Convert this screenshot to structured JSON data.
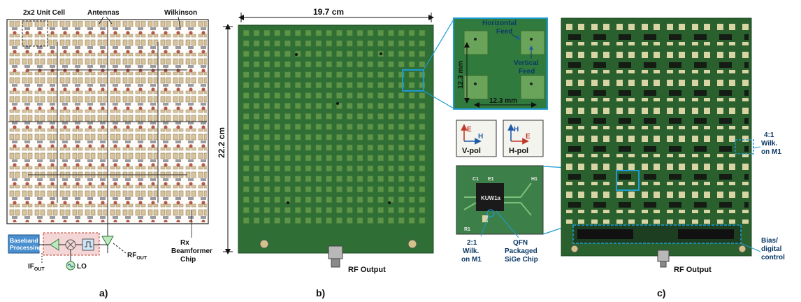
{
  "panel_a": {
    "label_unit_cell": "2x2 Unit Cell",
    "label_antennas": "Antennas",
    "label_wilkinson": "Wilkinson",
    "label_rf_out_main": "RF",
    "label_rf_out_sub": "OUT",
    "label_rx_chip": "Rx\nBeamformer\nChip",
    "label_baseband": "Baseband\nProcessing",
    "label_if_out_main": "IF",
    "label_if_out_sub": "OUT",
    "label_lo": "LO",
    "caption": "a)"
  },
  "panel_b": {
    "width_dim": "19.7 cm",
    "height_dim": "22.2 cm",
    "rf_output": "RF Output",
    "caption": "b)",
    "zoom": {
      "horizontal_feed": "Horizontal\nFeed",
      "vertical_feed": "Vertical\nFeed",
      "dim_vertical": "12.3 mm",
      "dim_horizontal": "12.3 mm"
    },
    "vpol": {
      "e": "E",
      "h": "H",
      "label": "V-pol"
    },
    "hpol": {
      "e": "E",
      "h": "H",
      "label": "H-pol"
    },
    "chip_zoom": {
      "chip_marking": "KUW1a",
      "c1": "C1",
      "e1": "E1",
      "h1": "H1",
      "r1": "R1"
    },
    "label_wilk_21": "2:1\nWilk.\non M1",
    "label_qfn": "QFN\nPackaged\nSiGe Chip"
  },
  "panel_c": {
    "label_wilk_41": "4:1\nWilk.\non M1",
    "label_bias": "Bias/\ndigital\ncontrol",
    "rf_output": "RF Output",
    "caption": "c)"
  },
  "colors": {
    "pcb_green": "#2f6e34",
    "pcb_dark": "#1d4a24",
    "patch_gold": "#c9a97a",
    "callout_blue": "#1e9bd2",
    "accent_red": "#c0392b",
    "wilkinson_pink": "#e8a0b0"
  }
}
